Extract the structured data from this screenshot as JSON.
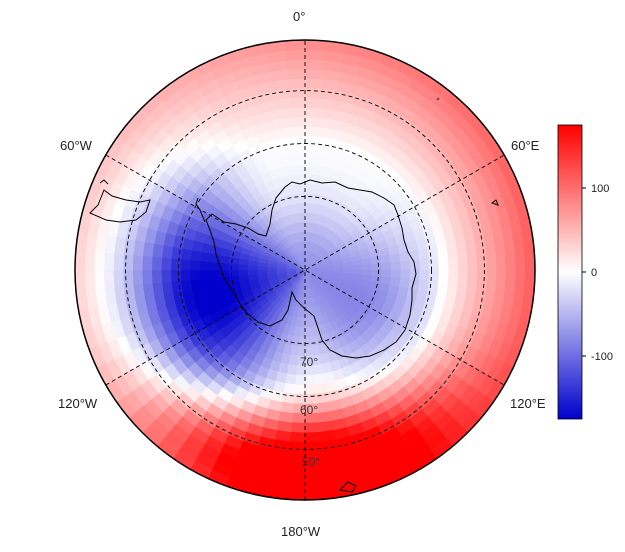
{
  "chart_data": {
    "type": "heatmap",
    "projection": "south-polar-stereographic",
    "longitude_labels": {
      "top": "0°",
      "upper_left": "60°W",
      "upper_right": "60°E",
      "lower_left": "120°W",
      "lower_right": "120°E",
      "bottom": "180°W"
    },
    "latitude_labels": [
      "70°",
      "60°",
      "50°"
    ],
    "colorbar": {
      "ticks": [
        "100",
        "0",
        "-100"
      ],
      "range": [
        -170,
        170
      ],
      "colormap": [
        "#0000cc",
        "#ffffff",
        "#ff0000"
      ]
    },
    "grid": true,
    "field_description_values": {
      "min_region_lon_deg": -90,
      "max_region_lon_deg": 180
    }
  }
}
